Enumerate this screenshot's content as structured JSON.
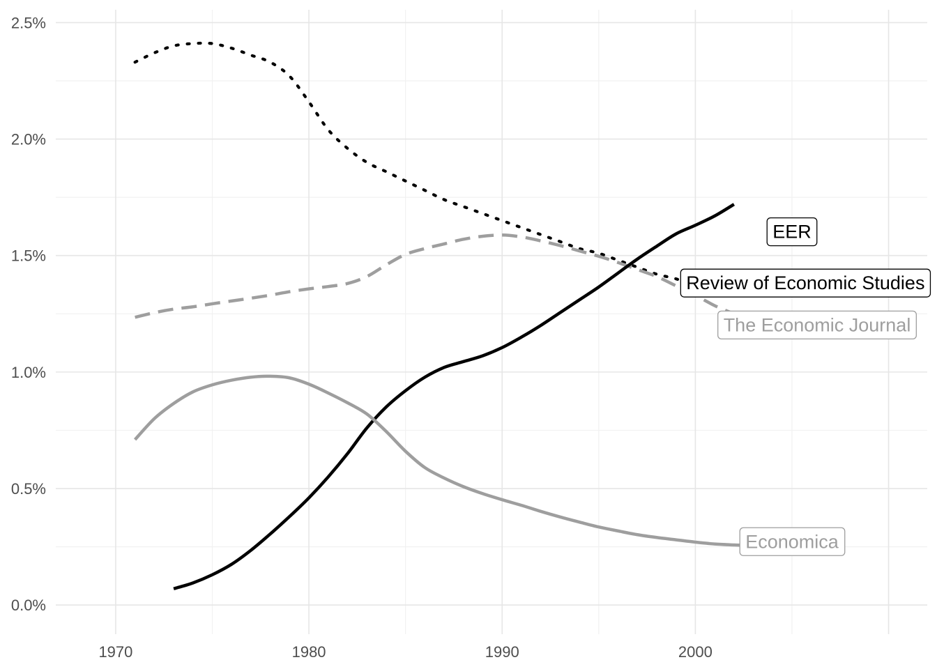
{
  "chart_data": {
    "type": "line",
    "title": "",
    "xlabel": "",
    "ylabel": "",
    "xlim": [
      1966.9,
      2012
    ],
    "ylim": [
      -0.00125,
      0.02555
    ],
    "x_ticks": [
      1970,
      1980,
      1990,
      2000
    ],
    "x_tick_labels": [
      "1970",
      "1980",
      "1990",
      "2000"
    ],
    "y_ticks": [
      0,
      0.005,
      0.01,
      0.015,
      0.02,
      0.025
    ],
    "y_tick_labels": [
      "0.0%",
      "0.5%",
      "1.0%",
      "1.5%",
      "2.0%",
      "2.5%"
    ],
    "grid": true,
    "legend": "direct labels at line ends",
    "series": [
      {
        "name": "Review of Economic Studies",
        "color": "#000000",
        "dash": "dotted",
        "label_x": 2005.7,
        "label_y": 0.01385,
        "points": [
          [
            1971,
            0.0233
          ],
          [
            1972,
            0.0237
          ],
          [
            1973,
            0.024
          ],
          [
            1974,
            0.0241
          ],
          [
            1975,
            0.0241
          ],
          [
            1976,
            0.0239
          ],
          [
            1977,
            0.0236
          ],
          [
            1978,
            0.0233
          ],
          [
            1979,
            0.0227
          ],
          [
            1980,
            0.0216
          ],
          [
            1981,
            0.0204
          ],
          [
            1982,
            0.0196
          ],
          [
            1983,
            0.019
          ],
          [
            1984,
            0.0186
          ],
          [
            1985,
            0.0182
          ],
          [
            1986,
            0.0178
          ],
          [
            1987,
            0.0174
          ],
          [
            1988,
            0.0171
          ],
          [
            1989,
            0.0168
          ],
          [
            1990,
            0.0165
          ],
          [
            1991,
            0.0162
          ],
          [
            1992,
            0.0159
          ],
          [
            1993,
            0.0156
          ],
          [
            1994,
            0.0153
          ],
          [
            1995,
            0.0151
          ],
          [
            1996,
            0.0148
          ],
          [
            1997,
            0.0145
          ],
          [
            1998,
            0.0142
          ],
          [
            1999,
            0.014
          ],
          [
            2000,
            0.0137
          ]
        ]
      },
      {
        "name": "The Economic Journal",
        "color": "#9e9e9e",
        "dash": "dashed",
        "label_x": 2006.3,
        "label_y": 0.01205,
        "points": [
          [
            1971,
            0.01235
          ],
          [
            1972,
            0.01255
          ],
          [
            1973,
            0.0127
          ],
          [
            1974,
            0.0128
          ],
          [
            1975,
            0.01293
          ],
          [
            1976,
            0.01305
          ],
          [
            1977,
            0.01317
          ],
          [
            1978,
            0.0133
          ],
          [
            1979,
            0.01345
          ],
          [
            1980,
            0.01357
          ],
          [
            1981,
            0.01367
          ],
          [
            1982,
            0.0138
          ],
          [
            1983,
            0.0141
          ],
          [
            1984,
            0.0146
          ],
          [
            1985,
            0.01505
          ],
          [
            1986,
            0.0153
          ],
          [
            1987,
            0.0155
          ],
          [
            1988,
            0.0157
          ],
          [
            1989,
            0.01583
          ],
          [
            1990,
            0.01588
          ],
          [
            1991,
            0.0158
          ],
          [
            1992,
            0.01563
          ],
          [
            1993,
            0.01543
          ],
          [
            1994,
            0.0152
          ],
          [
            1995,
            0.01497
          ],
          [
            1996,
            0.0147
          ],
          [
            1997,
            0.0144
          ],
          [
            1998,
            0.0141
          ],
          [
            1999,
            0.0137
          ],
          [
            2000,
            0.0133
          ],
          [
            2001,
            0.01285
          ],
          [
            2002,
            0.0125
          ]
        ]
      },
      {
        "name": "EER",
        "color": "#000000",
        "dash": "solid",
        "label_x": 2005,
        "label_y": 0.01605,
        "points": [
          [
            1973,
            0.0007
          ],
          [
            1974,
            0.00095
          ],
          [
            1975,
            0.0013
          ],
          [
            1976,
            0.00175
          ],
          [
            1977,
            0.00235
          ],
          [
            1978,
            0.00305
          ],
          [
            1979,
            0.0038
          ],
          [
            1980,
            0.0046
          ],
          [
            1981,
            0.0055
          ],
          [
            1982,
            0.0065
          ],
          [
            1983,
            0.0076
          ],
          [
            1984,
            0.0085
          ],
          [
            1985,
            0.0092
          ],
          [
            1986,
            0.00978
          ],
          [
            1987,
            0.0102
          ],
          [
            1988,
            0.01045
          ],
          [
            1989,
            0.0107
          ],
          [
            1990,
            0.01105
          ],
          [
            1991,
            0.0115
          ],
          [
            1992,
            0.012
          ],
          [
            1993,
            0.01255
          ],
          [
            1994,
            0.0131
          ],
          [
            1995,
            0.01365
          ],
          [
            1996,
            0.01425
          ],
          [
            1997,
            0.01485
          ],
          [
            1998,
            0.0154
          ],
          [
            1999,
            0.01593
          ],
          [
            2000,
            0.0163
          ],
          [
            2001,
            0.0167
          ],
          [
            2002,
            0.0172
          ]
        ]
      },
      {
        "name": "Economica",
        "color": "#9e9e9e",
        "dash": "solid",
        "label_x": 2005,
        "label_y": 0.00275,
        "points": [
          [
            1971,
            0.0071
          ],
          [
            1972,
            0.008
          ],
          [
            1973,
            0.00865
          ],
          [
            1974,
            0.00915
          ],
          [
            1975,
            0.00945
          ],
          [
            1976,
            0.00965
          ],
          [
            1977,
            0.00978
          ],
          [
            1978,
            0.00982
          ],
          [
            1979,
            0.00975
          ],
          [
            1980,
            0.00948
          ],
          [
            1981,
            0.0091
          ],
          [
            1982,
            0.00868
          ],
          [
            1983,
            0.0082
          ],
          [
            1984,
            0.00745
          ],
          [
            1985,
            0.0066
          ],
          [
            1986,
            0.0059
          ],
          [
            1987,
            0.00545
          ],
          [
            1988,
            0.00508
          ],
          [
            1989,
            0.00478
          ],
          [
            1990,
            0.00452
          ],
          [
            1991,
            0.00428
          ],
          [
            1992,
            0.00402
          ],
          [
            1993,
            0.00378
          ],
          [
            1994,
            0.00356
          ],
          [
            1995,
            0.00335
          ],
          [
            1996,
            0.00318
          ],
          [
            1997,
            0.00302
          ],
          [
            1998,
            0.0029
          ],
          [
            1999,
            0.0028
          ],
          [
            2000,
            0.0027
          ],
          [
            2001,
            0.00262
          ],
          [
            2002,
            0.00258
          ],
          [
            2003,
            0.00255
          ]
        ]
      }
    ]
  }
}
